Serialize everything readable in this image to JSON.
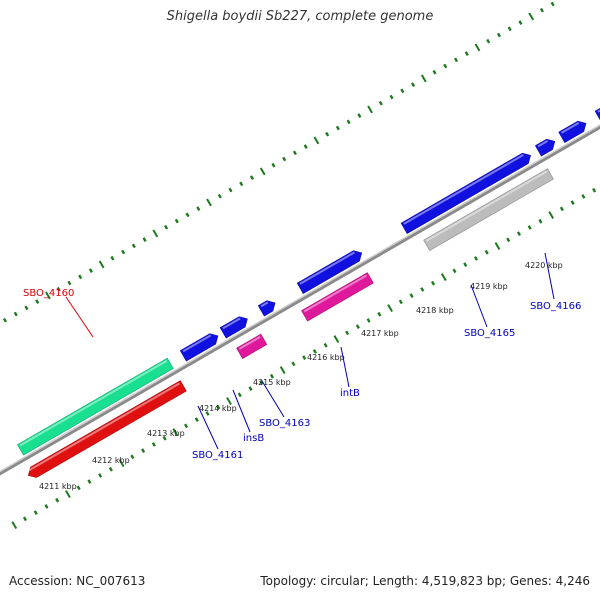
{
  "title": "Shigella boydii Sb227, complete genome",
  "footer": {
    "accession": "Accession: NC_007613",
    "topology": "Topology: circular; Length: 4,519,823 bp; Genes: 4,246"
  },
  "colors": {
    "backbone": "#8a8a8a",
    "ticks": "#1e7a1e",
    "blue_gene": "#1010e0",
    "red_gene": "#e01010",
    "green_gene": "#18e090",
    "pink_gene": "#e0189c",
    "grey_gene": "#bcbcbc",
    "label_blue": "#0000bb",
    "label_red": "#dd0000"
  },
  "kbp_labels": [
    "4211 kbp",
    "4212 kbp",
    "4213 kbp",
    "4214 kbp",
    "4215 kbp",
    "4216 kbp",
    "4217 kbp",
    "4218 kbp",
    "4219 kbp",
    "4220 kbp"
  ],
  "gene_labels": [
    {
      "text": "SBO_4160",
      "color": "red"
    },
    {
      "text": "SBO_4161",
      "color": "blue"
    },
    {
      "text": "insB",
      "color": "blue"
    },
    {
      "text": "SBO_4163",
      "color": "blue"
    },
    {
      "text": "intB",
      "color": "blue"
    },
    {
      "text": "SBO_4165",
      "color": "blue"
    },
    {
      "text": "SBO_4166",
      "color": "blue"
    }
  ]
}
